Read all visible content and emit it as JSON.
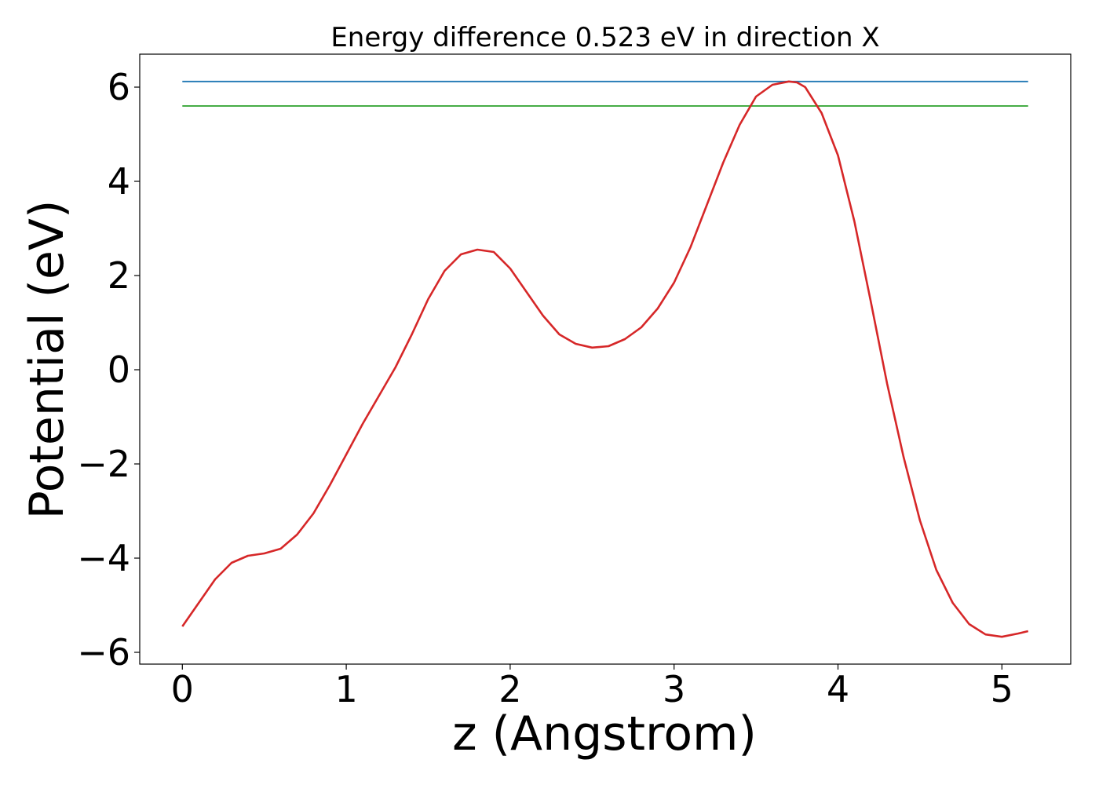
{
  "chart_data": {
    "type": "line",
    "title": "Energy difference 0.523 eV in direction X",
    "xlabel": "z (Angstrom)",
    "ylabel": "Potential (eV)",
    "xlim": [
      -0.26,
      5.42
    ],
    "ylim": [
      -6.25,
      6.7
    ],
    "xticks": [
      0,
      1,
      2,
      3,
      4,
      5
    ],
    "yticks": [
      -6,
      -4,
      -2,
      0,
      2,
      4,
      6
    ],
    "xtick_labels": [
      "0",
      "1",
      "2",
      "3",
      "4",
      "5"
    ],
    "ytick_labels": [
      "−6",
      "−4",
      "−2",
      "0",
      "2",
      "4",
      "6"
    ],
    "grid": false,
    "series": [
      {
        "color": "#1f77b4",
        "x": [
          0,
          5.16
        ],
        "y": [
          6.12,
          6.12
        ]
      },
      {
        "color": "#2ca02c",
        "x": [
          0,
          5.16
        ],
        "y": [
          5.6,
          5.6
        ]
      },
      {
        "color": "#d62728",
        "x": [
          0,
          0.1,
          0.2,
          0.3,
          0.4,
          0.5,
          0.6,
          0.7,
          0.8,
          0.9,
          1.0,
          1.1,
          1.2,
          1.3,
          1.4,
          1.5,
          1.6,
          1.7,
          1.8,
          1.9,
          2.0,
          2.1,
          2.2,
          2.3,
          2.4,
          2.5,
          2.6,
          2.7,
          2.8,
          2.9,
          3.0,
          3.1,
          3.2,
          3.3,
          3.4,
          3.5,
          3.6,
          3.7,
          3.75,
          3.8,
          3.9,
          4.0,
          4.1,
          4.2,
          4.3,
          4.4,
          4.5,
          4.6,
          4.7,
          4.8,
          4.9,
          5.0,
          5.1,
          5.16
        ],
        "y": [
          -5.45,
          -4.95,
          -4.45,
          -4.1,
          -3.95,
          -3.9,
          -3.8,
          -3.5,
          -3.05,
          -2.45,
          -1.8,
          -1.15,
          -0.55,
          0.05,
          0.75,
          1.5,
          2.1,
          2.45,
          2.55,
          2.5,
          2.15,
          1.65,
          1.15,
          0.75,
          0.55,
          0.47,
          0.5,
          0.65,
          0.9,
          1.3,
          1.85,
          2.6,
          3.5,
          4.4,
          5.2,
          5.8,
          6.05,
          6.12,
          6.1,
          6.0,
          5.45,
          4.55,
          3.15,
          1.45,
          -0.3,
          -1.85,
          -3.2,
          -4.25,
          -4.95,
          -5.4,
          -5.62,
          -5.67,
          -5.6,
          -5.55
        ]
      }
    ]
  }
}
